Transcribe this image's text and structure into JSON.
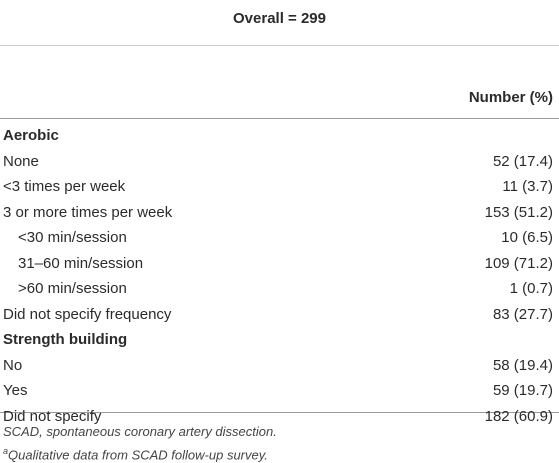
{
  "table": {
    "header": "Overall = 299",
    "column": "Number (%)",
    "rows": [
      {
        "label": "Aerobic",
        "heading": true
      },
      {
        "label": "None",
        "value": "52 (17.4)"
      },
      {
        "label": "<3 times per week",
        "value": "11 (3.7)"
      },
      {
        "label": "3 or more times per week",
        "value": "153 (51.2)"
      },
      {
        "label": "<30 min/session",
        "value": "10 (6.5)",
        "indent": true
      },
      {
        "label": "31–60 min/session",
        "value": "109 (71.2)",
        "indent": true
      },
      {
        "label": ">60 min/session",
        "value": "1 (0.7)",
        "indent": true
      },
      {
        "label": "Did not specify frequency",
        "value": "83 (27.7)"
      },
      {
        "label": "Strength building",
        "heading": true
      },
      {
        "label": "No",
        "value": "58 (19.4)"
      },
      {
        "label": "Yes",
        "value": "59 (19.7)"
      },
      {
        "label": "Did not specify",
        "value": "182 (60.9)"
      }
    ]
  },
  "footnotes": [
    {
      "text": "SCAD, spontaneous coronary artery dissection."
    },
    {
      "marker": "a",
      "text": "Qualitative data from SCAD follow-up survey."
    }
  ]
}
